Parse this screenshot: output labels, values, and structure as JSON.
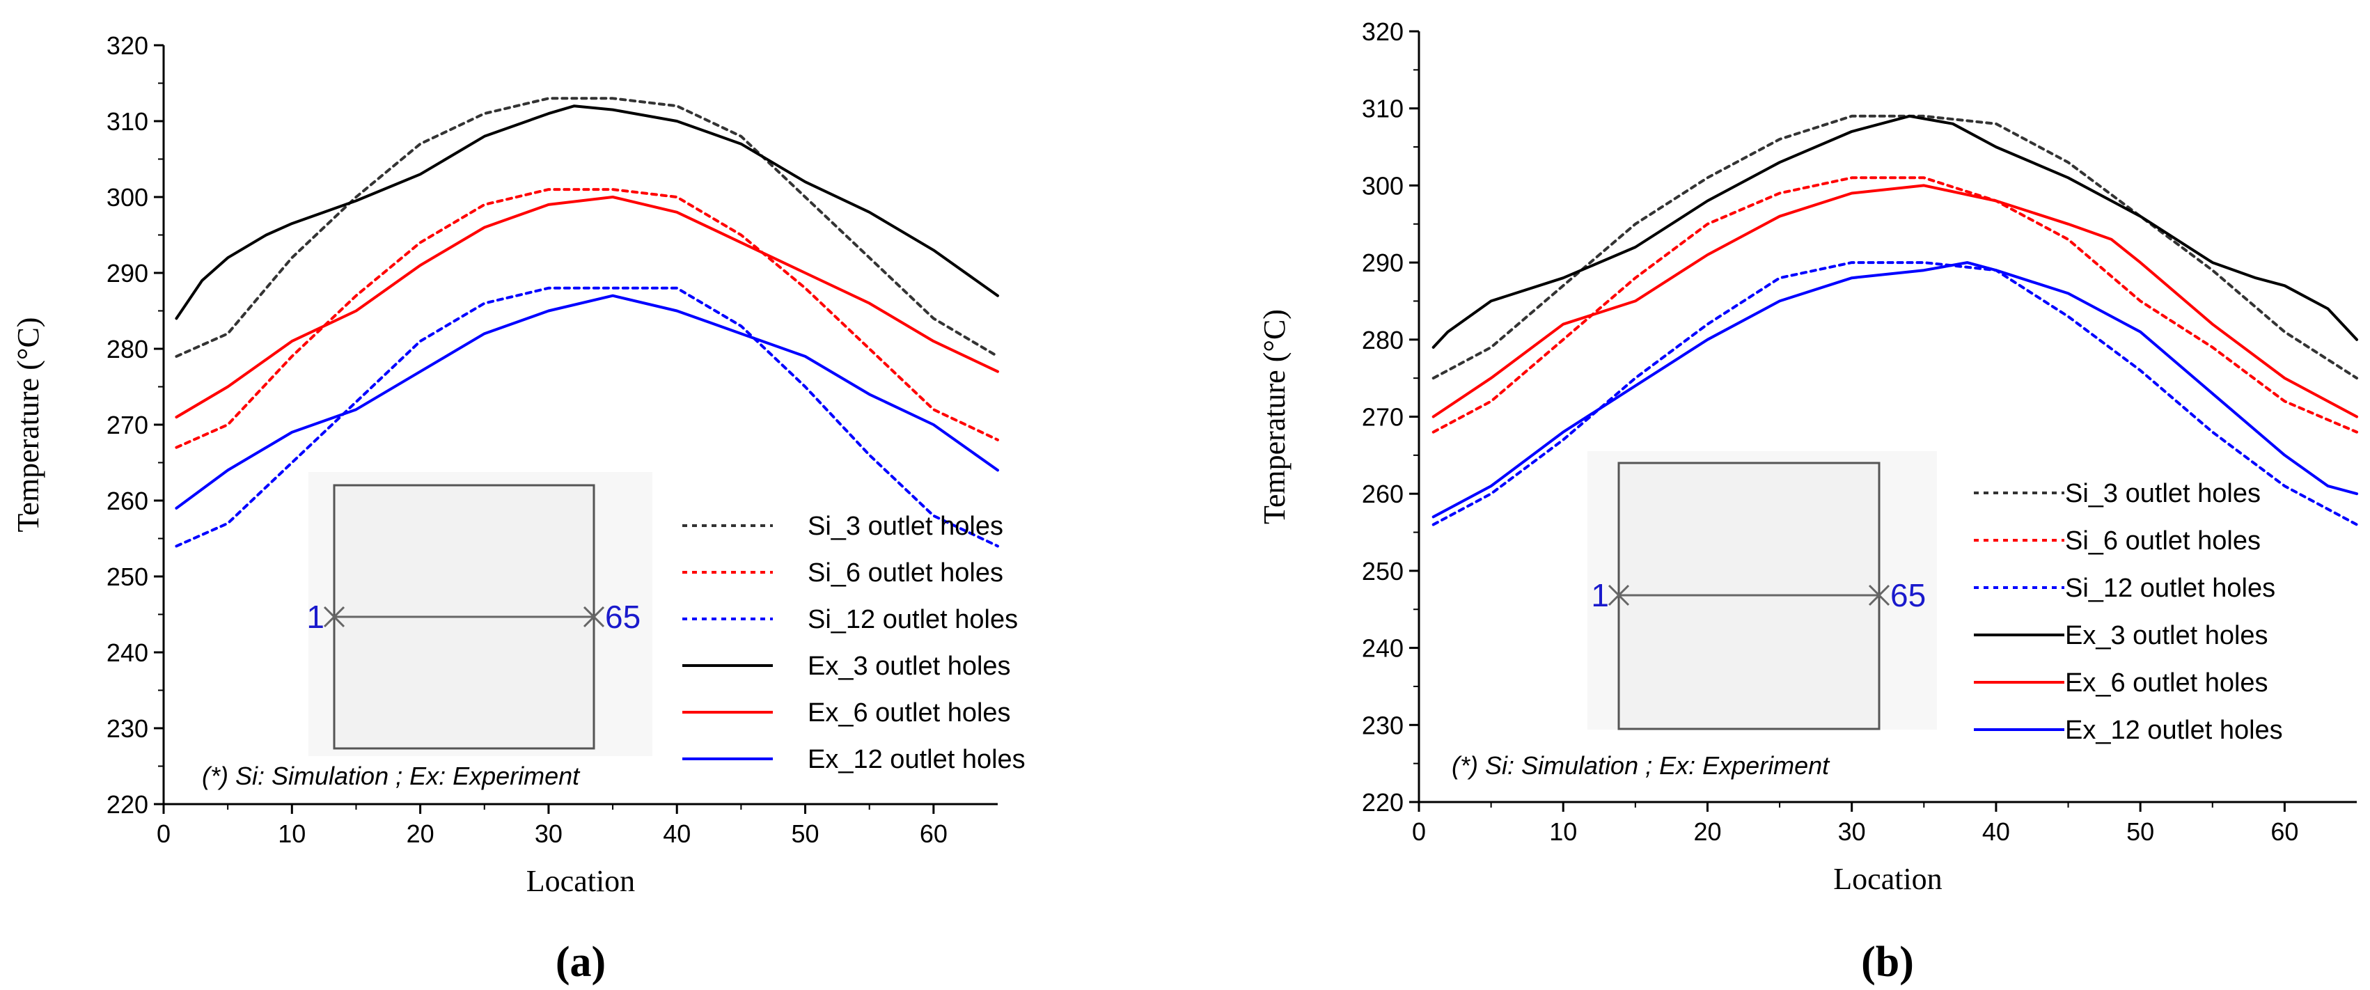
{
  "chart_data": [
    {
      "type": "line",
      "panel_label": "(a)",
      "xlabel": "Location",
      "ylabel": "Temperature (°C)",
      "xlim": [
        0,
        65
      ],
      "ylim": [
        220,
        320
      ],
      "xticks": [
        0,
        10,
        20,
        30,
        40,
        50,
        60
      ],
      "yticks": [
        220,
        230,
        240,
        250,
        260,
        270,
        280,
        290,
        300,
        310,
        320
      ],
      "grid": false,
      "legend_position": "bottom-right",
      "note": "(*) Si: Simulation ; Ex: Experiment",
      "inset": {
        "left_point_label": "1",
        "right_point_label": "65"
      },
      "series": [
        {
          "name": "Si_3 outlet holes",
          "color": "#333333",
          "dash": "dotted",
          "x": [
            1,
            5,
            10,
            15,
            20,
            25,
            30,
            35,
            40,
            45,
            50,
            55,
            60,
            65
          ],
          "y": [
            279,
            282,
            292,
            300,
            307,
            311,
            313,
            313,
            312,
            308,
            300,
            292,
            284,
            279
          ]
        },
        {
          "name": "Si_6 outlet holes",
          "color": "#ff0000",
          "dash": "dotted",
          "x": [
            1,
            5,
            10,
            15,
            20,
            25,
            30,
            35,
            40,
            45,
            50,
            55,
            60,
            65
          ],
          "y": [
            267,
            270,
            279,
            287,
            294,
            299,
            301,
            301,
            300,
            295,
            288,
            280,
            272,
            268
          ]
        },
        {
          "name": "Si_12 outlet holes",
          "color": "#0000ff",
          "dash": "dotted",
          "x": [
            1,
            5,
            10,
            15,
            20,
            25,
            30,
            35,
            40,
            45,
            50,
            55,
            60,
            65
          ],
          "y": [
            254,
            257,
            265,
            273,
            281,
            286,
            288,
            288,
            288,
            283,
            275,
            266,
            258,
            254
          ]
        },
        {
          "name": "Ex_3 outlet holes",
          "color": "#000000",
          "dash": "solid",
          "x": [
            1,
            3,
            5,
            8,
            10,
            15,
            20,
            25,
            30,
            32,
            35,
            40,
            45,
            50,
            55,
            60,
            65
          ],
          "y": [
            284,
            289,
            292,
            295,
            296.5,
            299.5,
            303,
            308,
            311,
            312,
            311.5,
            310,
            307,
            302,
            298,
            293,
            287
          ]
        },
        {
          "name": "Ex_6 outlet holes",
          "color": "#ff0000",
          "dash": "solid",
          "x": [
            1,
            5,
            10,
            15,
            20,
            25,
            30,
            35,
            40,
            45,
            50,
            55,
            60,
            65
          ],
          "y": [
            271,
            275,
            281,
            285,
            291,
            296,
            299,
            300,
            298,
            294,
            290,
            286,
            281,
            277
          ]
        },
        {
          "name": "Ex_12 outlet holes",
          "color": "#0000ff",
          "dash": "solid",
          "x": [
            1,
            5,
            10,
            15,
            20,
            25,
            30,
            35,
            40,
            45,
            50,
            55,
            60,
            65
          ],
          "y": [
            259,
            264,
            269,
            272,
            277,
            282,
            285,
            287,
            285,
            282,
            279,
            274,
            270,
            264
          ]
        }
      ]
    },
    {
      "type": "line",
      "panel_label": "(b)",
      "xlabel": "Location",
      "ylabel": "Temperature (°C)",
      "xlim": [
        0,
        65
      ],
      "ylim": [
        220,
        320
      ],
      "xticks": [
        0,
        10,
        20,
        30,
        40,
        50,
        60
      ],
      "yticks": [
        220,
        230,
        240,
        250,
        260,
        270,
        280,
        290,
        300,
        310,
        320
      ],
      "grid": false,
      "legend_position": "bottom-right",
      "note": "(*) Si: Simulation ; Ex: Experiment",
      "inset": {
        "left_point_label": "1",
        "right_point_label": "65"
      },
      "series": [
        {
          "name": "Si_3 outlet holes",
          "color": "#333333",
          "dash": "dotted",
          "x": [
            1,
            5,
            10,
            15,
            20,
            25,
            30,
            35,
            40,
            45,
            50,
            55,
            60,
            65
          ],
          "y": [
            275,
            279,
            287,
            295,
            301,
            306,
            309,
            309,
            308,
            303,
            296,
            289,
            281,
            275
          ]
        },
        {
          "name": "Si_6 outlet holes",
          "color": "#ff0000",
          "dash": "dotted",
          "x": [
            1,
            5,
            10,
            15,
            20,
            25,
            30,
            35,
            40,
            45,
            50,
            55,
            60,
            65
          ],
          "y": [
            268,
            272,
            280,
            288,
            295,
            299,
            301,
            301,
            298,
            293,
            285,
            279,
            272,
            268
          ]
        },
        {
          "name": "Si_12 outlet holes",
          "color": "#0000ff",
          "dash": "dotted",
          "x": [
            1,
            5,
            10,
            15,
            20,
            25,
            30,
            35,
            40,
            45,
            50,
            55,
            60,
            65
          ],
          "y": [
            256,
            260,
            267,
            275,
            282,
            288,
            290,
            290,
            289,
            283,
            276,
            268,
            261,
            256
          ]
        },
        {
          "name": "Ex_3 outlet holes",
          "color": "#000000",
          "dash": "solid",
          "x": [
            1,
            2,
            5,
            10,
            15,
            20,
            25,
            30,
            34,
            37,
            40,
            45,
            50,
            55,
            58,
            60,
            63,
            65
          ],
          "y": [
            279,
            281,
            285,
            288,
            292,
            298,
            303,
            307,
            309,
            308,
            305,
            301,
            296,
            290,
            288,
            287,
            284,
            280
          ]
        },
        {
          "name": "Ex_6 outlet holes",
          "color": "#ff0000",
          "dash": "solid",
          "x": [
            1,
            5,
            10,
            15,
            20,
            25,
            30,
            35,
            40,
            45,
            48,
            50,
            55,
            60,
            63,
            65
          ],
          "y": [
            270,
            275,
            282,
            285,
            291,
            296,
            299,
            300,
            298,
            295,
            293,
            290,
            282,
            275,
            272,
            270
          ]
        },
        {
          "name": "Ex_12 outlet holes",
          "color": "#0000ff",
          "dash": "solid",
          "x": [
            1,
            5,
            10,
            15,
            20,
            25,
            30,
            35,
            38,
            40,
            45,
            50,
            55,
            60,
            63,
            65
          ],
          "y": [
            257,
            261,
            268,
            274,
            280,
            285,
            288,
            289,
            290,
            289,
            286,
            281,
            273,
            265,
            261,
            260
          ]
        }
      ]
    }
  ]
}
